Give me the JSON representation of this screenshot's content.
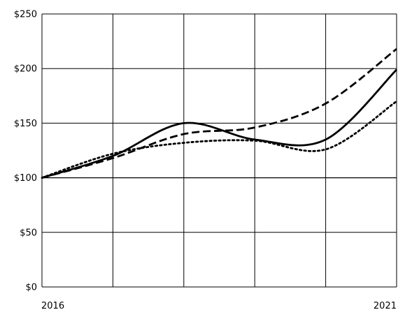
{
  "chart_data": {
    "type": "line",
    "title": "",
    "xlabel": "",
    "ylabel": "",
    "x_ticks": [
      "2016",
      "",
      "",
      "",
      "",
      "2021"
    ],
    "y_ticks": [
      "$0",
      "$50",
      "$100",
      "$150",
      "$200",
      "$250"
    ],
    "y_tick_values": [
      0,
      50,
      100,
      150,
      200,
      250
    ],
    "xlim": [
      2016,
      2021
    ],
    "ylim": [
      0,
      250
    ],
    "grid": true,
    "legend": "none",
    "series": [
      {
        "style": "solid",
        "color": "#000000",
        "points": [
          [
            2016,
            100
          ],
          [
            2017,
            120
          ],
          [
            2018,
            150
          ],
          [
            2019,
            135
          ],
          [
            2020,
            135
          ],
          [
            2021,
            199
          ]
        ]
      },
      {
        "style": "dashed",
        "color": "#000000",
        "points": [
          [
            2016,
            100
          ],
          [
            2017,
            118
          ],
          [
            2018,
            140
          ],
          [
            2019,
            146
          ],
          [
            2020,
            168
          ],
          [
            2021,
            218
          ]
        ]
      },
      {
        "style": "dotted",
        "color": "#000000",
        "points": [
          [
            2016,
            100
          ],
          [
            2017,
            122
          ],
          [
            2018,
            132
          ],
          [
            2019,
            134
          ],
          [
            2020,
            126
          ],
          [
            2021,
            170
          ]
        ]
      }
    ]
  }
}
